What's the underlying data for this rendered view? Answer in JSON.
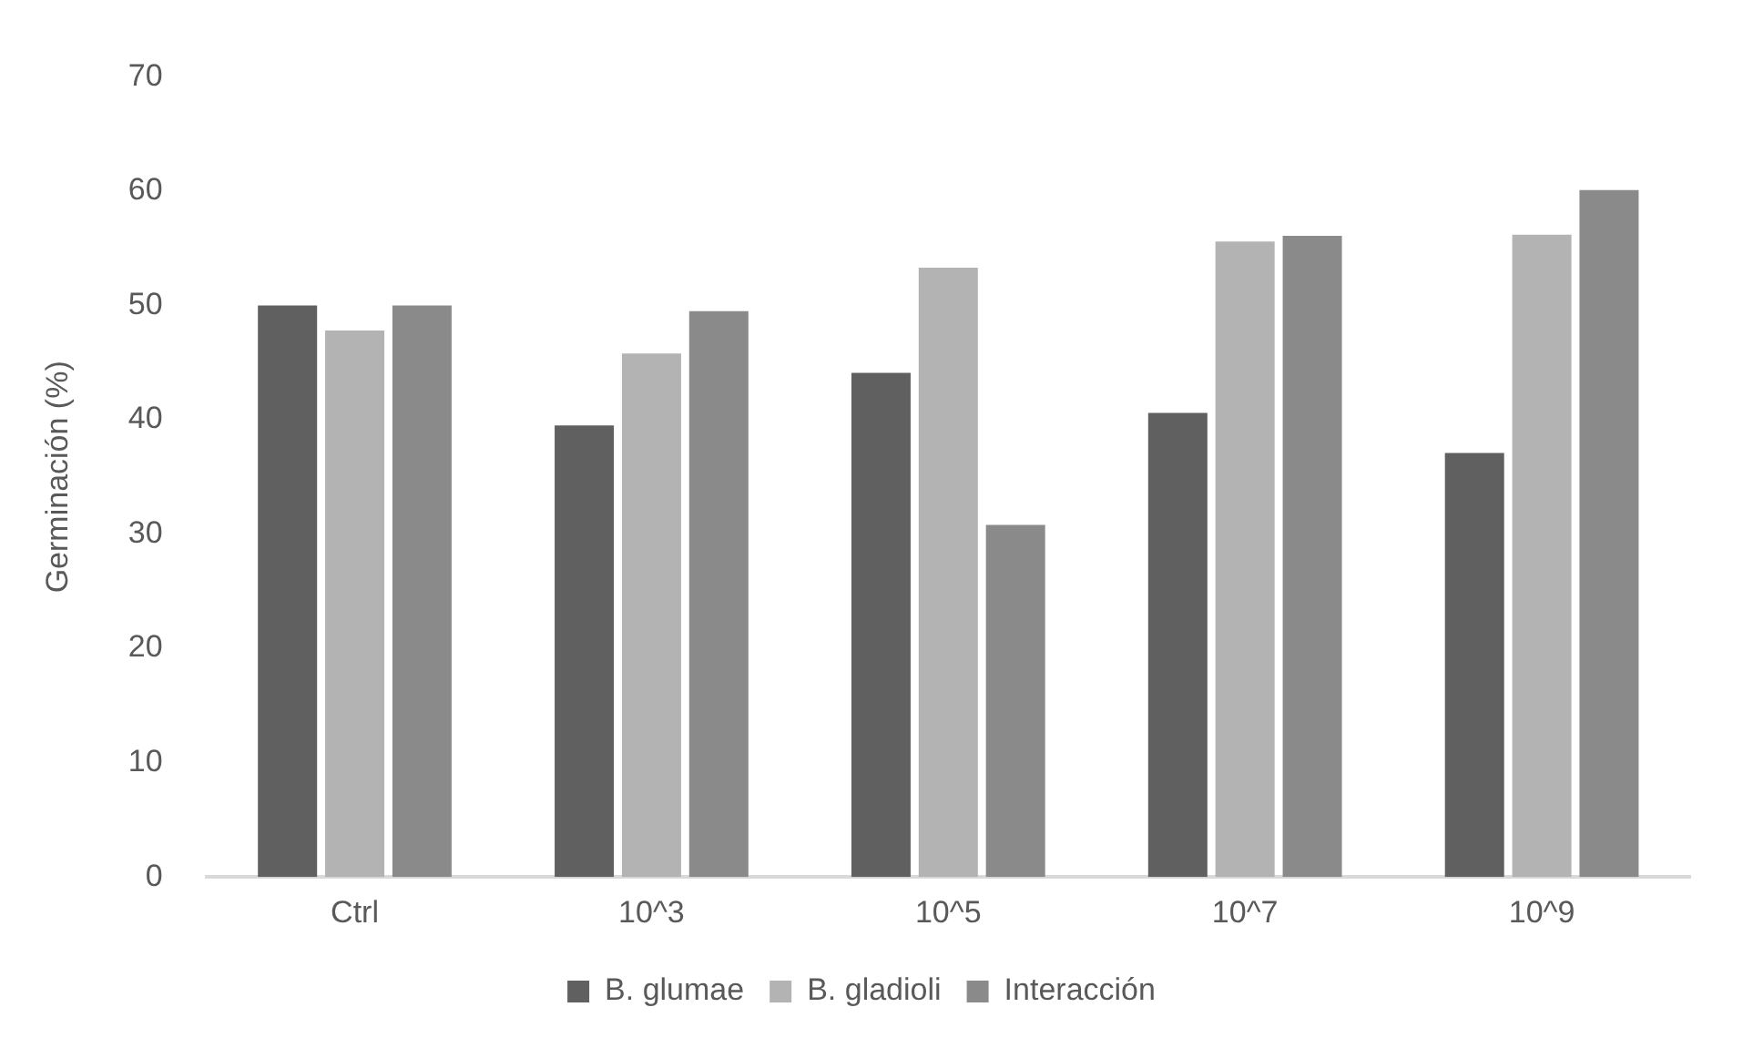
{
  "chart_data": {
    "type": "bar",
    "ylabel": "Germinación (%)",
    "categories": [
      "Ctrl",
      "10^3",
      "10^5",
      "10^7",
      "10^9"
    ],
    "series": [
      {
        "name": "B. glumae",
        "color": "#606060",
        "values": [
          50,
          39.5,
          44.1,
          40.6,
          37.1
        ]
      },
      {
        "name": "B. gladioli",
        "color": "#b3b3b3",
        "values": [
          47.8,
          45.8,
          53.3,
          55.6,
          56.2
        ]
      },
      {
        "name": "Interacción",
        "color": "#8a8a8a",
        "values": [
          50,
          49.5,
          30.8,
          56.1,
          60.1
        ]
      }
    ],
    "ylim": [
      0,
      70
    ],
    "yticks": [
      0,
      10,
      20,
      30,
      40,
      50,
      60,
      70
    ],
    "grid": false,
    "legend": "bottom"
  }
}
